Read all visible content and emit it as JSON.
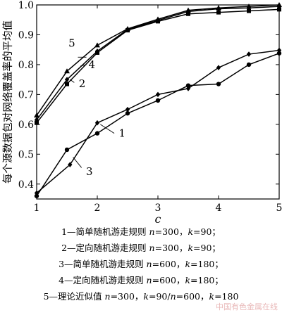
{
  "chart_data": {
    "type": "line",
    "ylabel": "每个源数据包对网络覆盖率的平均值",
    "xlabel": "c",
    "xlim": [
      1,
      5
    ],
    "ylim": [
      0.35,
      1.0
    ],
    "xticks": [
      "1",
      "2",
      "3",
      "4",
      "5"
    ],
    "yticks": [
      "0.4",
      "0.5",
      "0.6",
      "0.7",
      "0.8",
      "0.9",
      "1.0"
    ],
    "series": [
      {
        "name": "1",
        "marker": "diamond",
        "x": [
          1,
          1.55,
          2,
          2.5,
          3,
          3.5,
          4,
          4.5,
          5
        ],
        "y": [
          0.37,
          0.465,
          0.605,
          0.65,
          0.7,
          0.72,
          0.79,
          0.835,
          0.848
        ]
      },
      {
        "name": "2",
        "marker": "square",
        "x": [
          1,
          1.5,
          2,
          2.5,
          3,
          3.5,
          4,
          4.5,
          5
        ],
        "y": [
          0.605,
          0.735,
          0.84,
          0.915,
          0.945,
          0.97,
          0.975,
          0.98,
          0.985
        ]
      },
      {
        "name": "3",
        "marker": "circle",
        "x": [
          1,
          1.5,
          2,
          2.5,
          3,
          3.5,
          4,
          4.5,
          5
        ],
        "y": [
          0.36,
          0.515,
          0.57,
          0.637,
          0.68,
          0.73,
          0.735,
          0.8,
          0.838
        ]
      },
      {
        "name": "4",
        "marker": "diamond",
        "x": [
          1,
          1.5,
          2,
          2.5,
          3,
          3.5,
          4,
          4.5,
          5
        ],
        "y": [
          0.615,
          0.75,
          0.845,
          0.918,
          0.948,
          0.978,
          0.987,
          0.99,
          0.995
        ]
      },
      {
        "name": "5",
        "marker": "triangle",
        "x": [
          1,
          1.5,
          2,
          2.5,
          3,
          3.5,
          4,
          4.5,
          5
        ],
        "y": [
          0.63,
          0.778,
          0.865,
          0.92,
          0.952,
          0.982,
          0.99,
          0.995,
          1.0
        ]
      }
    ],
    "annotations": [
      "5",
      "4",
      "2",
      "1",
      "3"
    ]
  },
  "legend": [
    {
      "prefix": "1—简单随机游走规则 ",
      "p1": "n",
      "m1": "=300，",
      "p2": "k",
      "m2": "=90；"
    },
    {
      "prefix": "2—定向随机游走规则 ",
      "p1": "n",
      "m1": "=300，",
      "p2": "k",
      "m2": "=90；"
    },
    {
      "prefix": "3—简单随机游走规则 ",
      "p1": "n",
      "m1": "=600，",
      "p2": "k",
      "m2": "=180；"
    },
    {
      "prefix": "4—定向随机游走规则 ",
      "p1": "n",
      "m1": "=600，",
      "p2": "k",
      "m2": "=180；"
    },
    {
      "prefix": "5—理论近似值 ",
      "p1": "n",
      "m1": "=300，",
      "p2": "k",
      "m2": "=90/",
      "p3": "n",
      "m3": "=600，",
      "p4": "k",
      "m4": "=180"
    }
  ],
  "watermark": "中国有色金属在线"
}
